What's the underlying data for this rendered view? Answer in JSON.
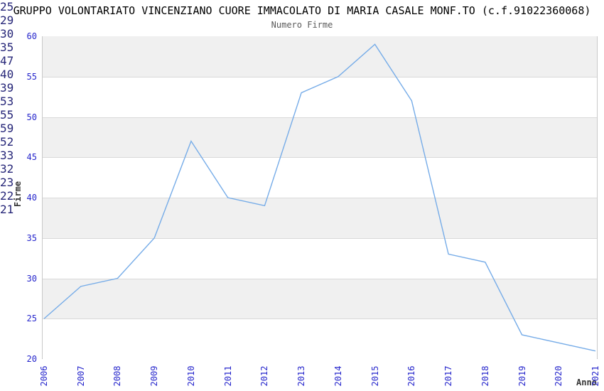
{
  "chart_data": {
    "type": "line",
    "title": "GRUPPO VOLONTARIATO VINCENZIANO CUORE IMMACOLATO DI MARIA CASALE MONF.TO (c.f.91022360068)",
    "subtitle": "Numero Firme",
    "xlabel": "Anno",
    "ylabel": "Firme",
    "categories": [
      "2006",
      "2007",
      "2008",
      "2009",
      "2010",
      "2011",
      "2012",
      "2013",
      "2014",
      "2015",
      "2016",
      "2017",
      "2018",
      "2019",
      "2020",
      "2021"
    ],
    "values": [
      25,
      29,
      30,
      35,
      47,
      40,
      39,
      53,
      55,
      59,
      52,
      33,
      32,
      23,
      22,
      21
    ],
    "ylim": [
      20,
      60
    ],
    "ytick_step": 5,
    "grid": true,
    "legend": "none",
    "banded_background": true,
    "show_value_labels": true,
    "colors": {
      "line": "#76ACE8",
      "value_label": "#262678",
      "tick_label": "#2626CC",
      "band_gray": "#f0f0f0",
      "band_white": "#ffffff",
      "gridline": "#d9d9d9",
      "plot_border": "#c9c9c9",
      "title": "#000000",
      "subtitle": "#5a5a5a",
      "axis_title": "#333333"
    }
  }
}
